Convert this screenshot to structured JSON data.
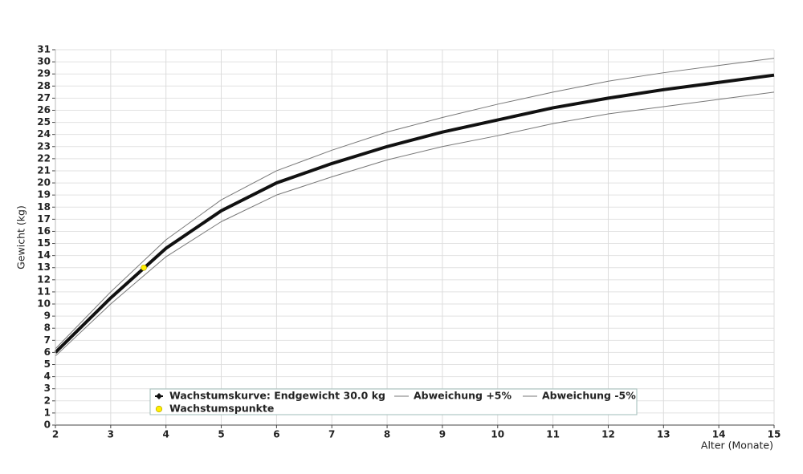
{
  "chart_data": {
    "type": "line",
    "x_label": "Alter (Monate)",
    "y_label": "Gewicht (kg)",
    "x": [
      2,
      3,
      4,
      5,
      6,
      7,
      8,
      9,
      10,
      11,
      12,
      13,
      14,
      15
    ],
    "series": [
      {
        "name": "Wachstumskurve: Endgewicht 30.0 kg",
        "color": "#111111",
        "width": 4,
        "values": [
          6.0,
          10.5,
          14.6,
          17.7,
          20.0,
          21.6,
          23.0,
          24.2,
          25.2,
          26.2,
          27.0,
          27.7,
          28.3,
          28.9
        ]
      },
      {
        "name": "Abweichung +5%",
        "color": "#777777",
        "width": 1,
        "values": [
          6.3,
          11.0,
          15.3,
          18.6,
          21.0,
          22.7,
          24.2,
          25.4,
          26.5,
          27.5,
          28.4,
          29.1,
          29.7,
          30.3
        ]
      },
      {
        "name": "Abweichung -5%",
        "color": "#777777",
        "width": 1,
        "values": [
          5.7,
          10.0,
          13.9,
          16.8,
          19.0,
          20.5,
          21.9,
          23.0,
          23.9,
          24.9,
          25.7,
          26.3,
          26.9,
          27.5
        ]
      },
      {
        "name": "Wachstumspunkte",
        "type": "scatter",
        "color": "#ffee00",
        "x": [
          3.6
        ],
        "values": [
          13.0
        ]
      }
    ],
    "xlim": [
      2,
      15
    ],
    "ylim": [
      0,
      31
    ],
    "xticks": [
      2,
      3,
      4,
      5,
      6,
      7,
      8,
      9,
      10,
      11,
      12,
      13,
      14,
      15
    ],
    "yticks": [
      0,
      1,
      2,
      3,
      4,
      5,
      6,
      7,
      8,
      9,
      10,
      11,
      12,
      13,
      14,
      15,
      16,
      17,
      18,
      19,
      20,
      21,
      22,
      23,
      24,
      25,
      26,
      27,
      28,
      29,
      30,
      31
    ],
    "grid": true
  }
}
